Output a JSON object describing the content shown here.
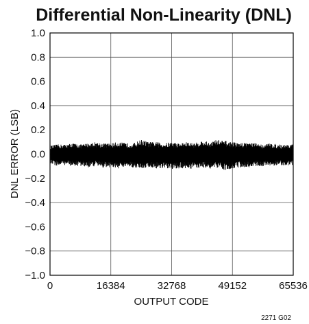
{
  "chart_data": {
    "type": "line",
    "title": "Differential Non-Linearity (DNL)",
    "xlabel": "OUTPUT CODE",
    "ylabel": "DNL ERROR (LSB)",
    "xlim": [
      0,
      65536
    ],
    "ylim": [
      -1.0,
      1.0
    ],
    "x_ticks": [
      "0",
      "16384",
      "32768",
      "49152",
      "65536"
    ],
    "y_ticks": [
      "1.0",
      "0.8",
      "0.6",
      "0.4",
      "0.2",
      "0.0",
      "−0.2",
      "−0.4",
      "−0.6",
      "−0.8",
      "−1.0"
    ],
    "grid": true,
    "series": [
      {
        "color": "#000000",
        "x": [
          0,
          2048,
          4096,
          6144,
          8192,
          10240,
          12288,
          14336,
          16384,
          18432,
          20480,
          22528,
          24576,
          26624,
          28672,
          30720,
          32768,
          34816,
          36864,
          38912,
          40960,
          43008,
          45056,
          47104,
          49152,
          51200,
          53248,
          55296,
          57344,
          59392,
          61440,
          63488,
          65536
        ],
        "upper": [
          0.07,
          0.08,
          0.08,
          0.09,
          0.08,
          0.09,
          0.1,
          0.09,
          0.09,
          0.1,
          0.09,
          0.09,
          0.12,
          0.1,
          0.1,
          0.09,
          0.1,
          0.09,
          0.1,
          0.09,
          0.11,
          0.1,
          0.12,
          0.11,
          0.1,
          0.09,
          0.1,
          0.09,
          0.08,
          0.09,
          0.08,
          0.08,
          0.08
        ],
        "lower": [
          -0.08,
          -0.1,
          -0.09,
          -0.1,
          -0.1,
          -0.11,
          -0.1,
          -0.11,
          -0.11,
          -0.12,
          -0.11,
          -0.11,
          -0.12,
          -0.11,
          -0.12,
          -0.12,
          -0.13,
          -0.12,
          -0.12,
          -0.12,
          -0.11,
          -0.12,
          -0.12,
          -0.13,
          -0.12,
          -0.11,
          -0.11,
          -0.1,
          -0.1,
          -0.1,
          -0.09,
          -0.1,
          -0.09
        ]
      }
    ]
  },
  "figure_code": "2271 G02"
}
